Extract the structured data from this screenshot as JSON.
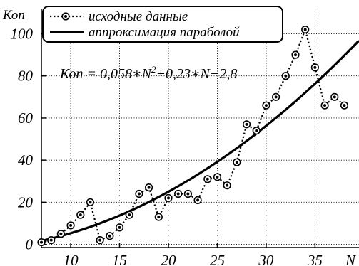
{
  "chart_data": {
    "type": "line",
    "ylabel": "Коп",
    "xlabel": "N",
    "xlim": [
      7,
      39.5
    ],
    "ylim": [
      -1.5,
      112
    ],
    "x_ticks": [
      10,
      15,
      20,
      25,
      30,
      35
    ],
    "y_ticks": [
      0,
      20,
      40,
      60,
      80,
      100
    ],
    "grid": true,
    "legend_position": "top-left",
    "series": [
      {
        "name": "исходные данные",
        "style": "dotted-markers",
        "color": "#000000",
        "x": [
          7,
          8,
          9,
          10,
          11,
          12,
          13,
          14,
          15,
          16,
          17,
          18,
          19,
          20,
          21,
          22,
          23,
          24,
          25,
          26,
          27,
          28,
          29,
          30,
          31,
          32,
          33,
          34,
          35,
          36,
          37,
          38
        ],
        "y": [
          1,
          2,
          5,
          9,
          14,
          20,
          2,
          4,
          8,
          14,
          24,
          27,
          13,
          22,
          24,
          24,
          21,
          31,
          32,
          28,
          39,
          57,
          54,
          66,
          70,
          80,
          90,
          102,
          84,
          66,
          70,
          66
        ]
      },
      {
        "name": "аппроксимация параболой",
        "style": "solid",
        "color": "#000000",
        "formula_coefficients": [
          0.058,
          0.23,
          -2.8
        ]
      }
    ],
    "annotation": {
      "pre": "Коп = 0,058∗N",
      "sup": "2",
      "post": "+0,23∗N−2,8"
    }
  }
}
